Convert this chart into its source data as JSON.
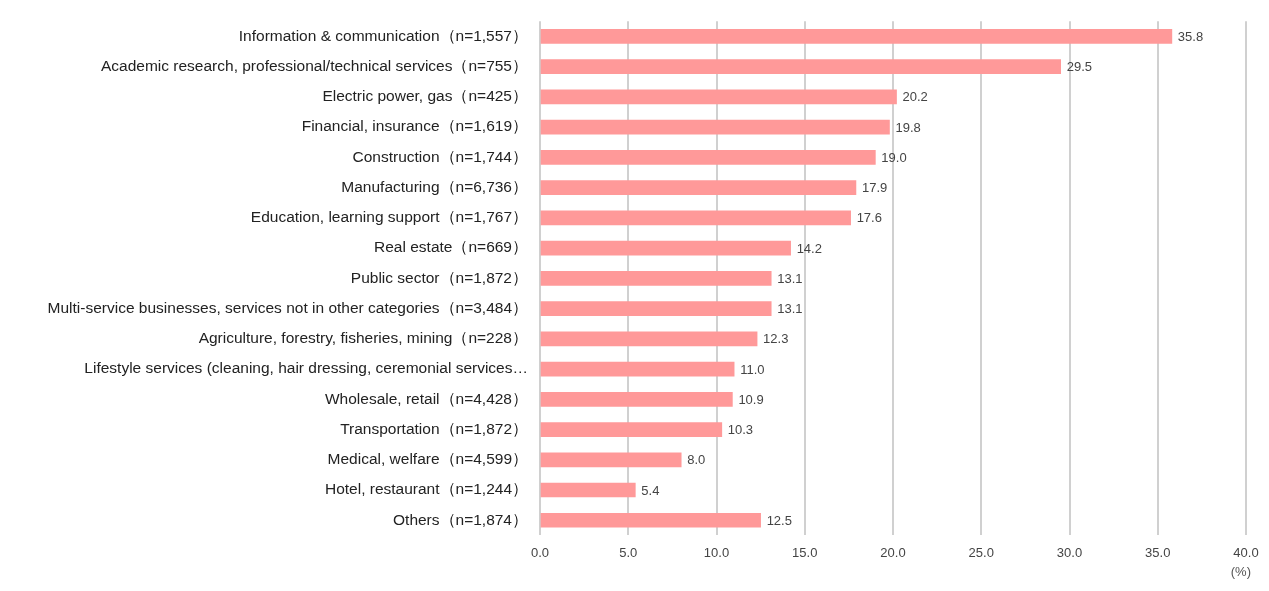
{
  "chart_data": {
    "type": "bar",
    "orientation": "horizontal",
    "xlabel": "(%)",
    "categories": [
      "Information & communication（n=1,557）",
      "Academic research, professional/technical services（n=755）",
      "Electric power, gas（n=425）",
      "Financial, insurance（n=1,619）",
      "Construction（n=1,744）",
      "Manufacturing（n=6,736）",
      "Education, learning support（n=1,767）",
      "Real estate（n=669）",
      "Public sector（n=1,872）",
      "Multi-service businesses, services not in other categories（n=3,484）",
      "Agriculture, forestry, fisheries, mining（n=228）",
      "Lifestyle services (cleaning, hair dressing, ceremonial services…",
      "Wholesale, retail（n=4,428）",
      "Transportation（n=1,872）",
      "Medical, welfare（n=4,599）",
      "Hotel, restaurant（n=1,244）",
      "Others（n=1,874）"
    ],
    "values": [
      35.8,
      29.5,
      20.2,
      19.8,
      19.0,
      17.9,
      17.6,
      14.2,
      13.1,
      13.1,
      12.3,
      11.0,
      10.9,
      10.3,
      8.0,
      5.4,
      12.5
    ],
    "value_labels": [
      "35.8",
      "29.5",
      "20.2",
      "19.8",
      "19.0",
      "17.9",
      "17.6",
      "14.2",
      "13.1",
      "13.1",
      "12.3",
      "11.0",
      "10.9",
      "10.3",
      "8.0",
      "5.4",
      "12.5"
    ],
    "color": "#ff9999",
    "xlim": [
      0,
      40
    ],
    "xticks": [
      {
        "value": 0,
        "label": "0.0"
      },
      {
        "value": 5,
        "label": "5.0"
      },
      {
        "value": 10,
        "label": "10.0"
      },
      {
        "value": 15,
        "label": "15.0"
      },
      {
        "value": 20,
        "label": "20.0"
      },
      {
        "value": 25,
        "label": "25.0"
      },
      {
        "value": 30,
        "label": "30.0"
      },
      {
        "value": 35,
        "label": "35.0"
      },
      {
        "value": 40,
        "label": "40.0"
      }
    ],
    "grid": "x"
  }
}
